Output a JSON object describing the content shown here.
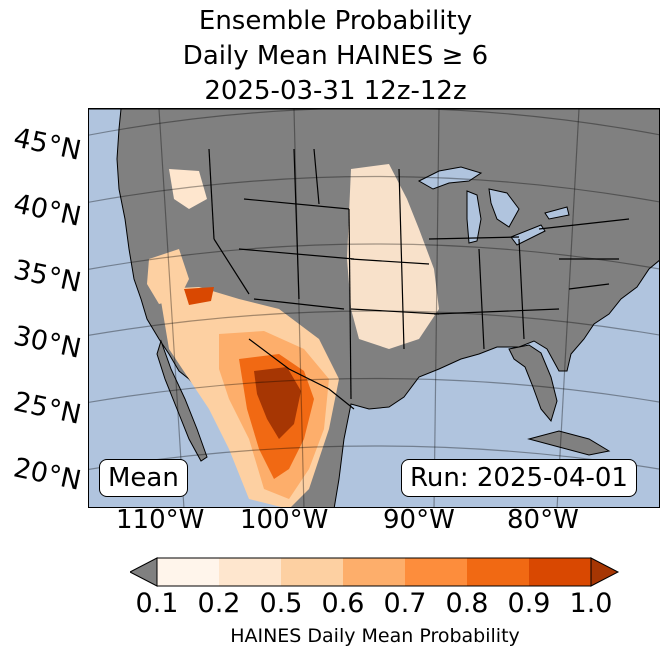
{
  "title": {
    "line1": "Ensemble Probability",
    "line2": "Daily Mean HAINES ≥ 6",
    "line3": "2025-03-31 12z-12z"
  },
  "map": {
    "ocean_color": "#b0c4de",
    "land_color": "#808080",
    "lat_labels": [
      "45°N",
      "40°N",
      "35°N",
      "30°N",
      "25°N",
      "20°N"
    ],
    "lon_labels": [
      "110°W",
      "100°W",
      "90°W",
      "80°W"
    ],
    "left_box": "Mean",
    "right_box": "Run: 2025-04-01"
  },
  "colorbar": {
    "ticks": [
      "0.1",
      "0.2",
      "0.5",
      "0.6",
      "0.7",
      "0.8",
      "0.9",
      "1.0"
    ],
    "colors": [
      "#808080",
      "#fff5eb",
      "#fee6ce",
      "#fdd0a2",
      "#fdae6b",
      "#fd8d3c",
      "#f16913",
      "#d94801",
      "#a63603"
    ],
    "label": "HAINES Daily Mean Probability"
  }
}
